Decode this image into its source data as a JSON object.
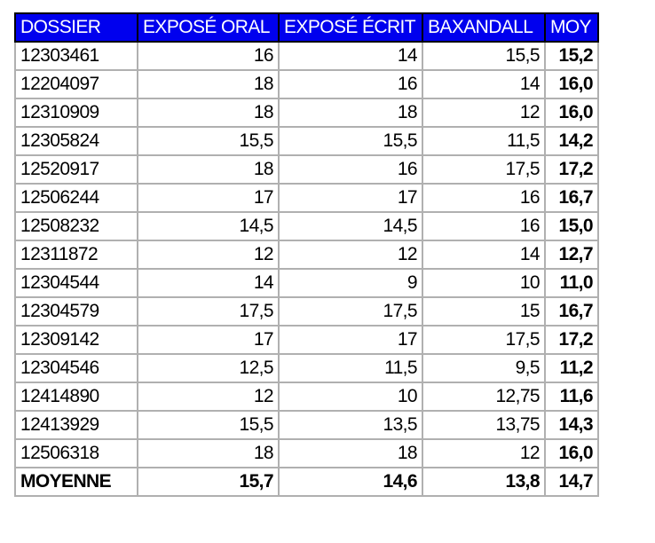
{
  "table": {
    "headers": [
      "DOSSIER",
      "EXPOSÉ ORAL",
      "EXPOSÉ ÉCRIT",
      "BAXANDALL",
      "MOY"
    ],
    "rows": [
      [
        "12303461",
        "16",
        "14",
        "15,5",
        "15,2"
      ],
      [
        "12204097",
        "18",
        "16",
        "14",
        "16,0"
      ],
      [
        "12310909",
        "18",
        "18",
        "12",
        "16,0"
      ],
      [
        "12305824",
        "15,5",
        "15,5",
        "11,5",
        "14,2"
      ],
      [
        "12520917",
        "18",
        "16",
        "17,5",
        "17,2"
      ],
      [
        "12506244",
        "17",
        "17",
        "16",
        "16,7"
      ],
      [
        "12508232",
        "14,5",
        "14,5",
        "16",
        "15,0"
      ],
      [
        "12311872",
        "12",
        "12",
        "14",
        "12,7"
      ],
      [
        "12304544",
        "14",
        "9",
        "10",
        "11,0"
      ],
      [
        "12304579",
        "17,5",
        "17,5",
        "15",
        "16,7"
      ],
      [
        "12309142",
        "17",
        "17",
        "17,5",
        "17,2"
      ],
      [
        "12304546",
        "12,5",
        "11,5",
        "9,5",
        "11,2"
      ],
      [
        "12414890",
        "12",
        "10",
        "12,75",
        "11,6"
      ],
      [
        "12413929",
        "15,5",
        "13,5",
        "13,75",
        "14,3"
      ],
      [
        "12506318",
        "18",
        "18",
        "12",
        "16,0"
      ]
    ],
    "total": [
      "MOYENNE",
      "15,7",
      "14,6",
      "13,8",
      "14,7"
    ],
    "header_color": "#0000ee"
  }
}
